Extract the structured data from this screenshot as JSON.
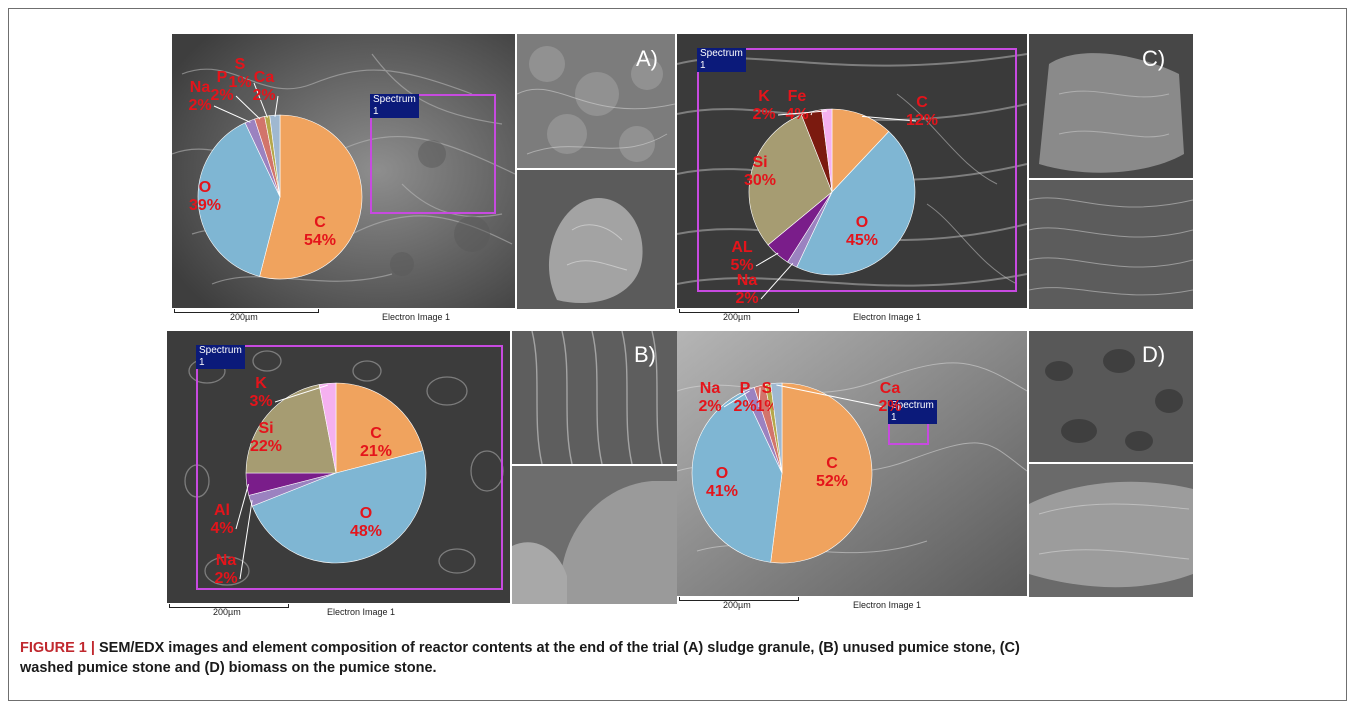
{
  "caption": {
    "figure_label": "FIGURE 1 |",
    "text_line1": " SEM/EDX images and element composition of reactor contents at the end of the trial (A) sludge granule, (B) unused pumice stone, (C)",
    "text_line2": "washed pumice stone and (D) biomass on the pumice stone."
  },
  "footer": {
    "scale_label": "200µm",
    "image_label": "Electron Image 1"
  },
  "spectrum_label": "Spectrum 1",
  "colors": {
    "C": "#f0a35e",
    "O": "#7fb6d3",
    "Si": "#a69c72",
    "Al": "#7a1d8a",
    "K": "#f5b1f0",
    "Fe": "#7b1a0f",
    "Na": "#9b82c0",
    "P": "#d2746b",
    "S": "#b5a74a",
    "Ca": "#9fb8d0",
    "label": "#e4141b"
  },
  "chart_data": [
    {
      "panel": "A)",
      "type": "pie",
      "slices": [
        {
          "name": "C",
          "value": 54
        },
        {
          "name": "O",
          "value": 39
        },
        {
          "name": "Na",
          "value": 2
        },
        {
          "name": "P",
          "value": 2
        },
        {
          "name": "S",
          "value": 1
        },
        {
          "name": "Ca",
          "value": 2
        }
      ]
    },
    {
      "panel": "B)",
      "type": "pie",
      "slices": [
        {
          "name": "C",
          "value": 21
        },
        {
          "name": "O",
          "value": 48
        },
        {
          "name": "Na",
          "value": 2
        },
        {
          "name": "Al",
          "value": 4
        },
        {
          "name": "Si",
          "value": 22
        },
        {
          "name": "K",
          "value": 3
        }
      ]
    },
    {
      "panel": "C)",
      "type": "pie",
      "slices": [
        {
          "name": "C",
          "value": 12
        },
        {
          "name": "O",
          "value": 45
        },
        {
          "name": "Na",
          "value": 2
        },
        {
          "name": "AL",
          "value": 5
        },
        {
          "name": "Si",
          "value": 30
        },
        {
          "name": "Fe",
          "value": 4
        },
        {
          "name": "K",
          "value": 2
        }
      ]
    },
    {
      "panel": "D)",
      "type": "pie",
      "slices": [
        {
          "name": "C",
          "value": 52
        },
        {
          "name": "O",
          "value": 41
        },
        {
          "name": "Na",
          "value": 2
        },
        {
          "name": "P",
          "value": 2
        },
        {
          "name": "S",
          "value": 1
        },
        {
          "name": "Ca",
          "value": 2
        }
      ]
    }
  ]
}
